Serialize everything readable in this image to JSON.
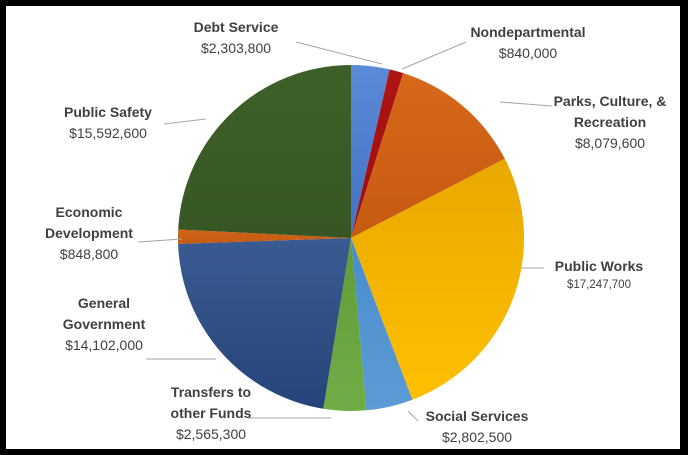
{
  "chart_data": {
    "type": "pie",
    "title": "",
    "slices": [
      {
        "name": "Debt Service",
        "name_lines": [
          "Debt Service"
        ],
        "value": 2303800,
        "label": "$2,303,800",
        "color": "#4472c4",
        "color2": "#5b8ad8"
      },
      {
        "name": "Nondepartmental",
        "name_lines": [
          "Nondepartmental"
        ],
        "value": 840000,
        "label": "$840,000",
        "color": "#9b0d0d",
        "color2": "#b01515"
      },
      {
        "name": "Parks, Culture, & Recreation",
        "name_lines": [
          "Parks, Culture, &",
          "Recreation"
        ],
        "value": 8079600,
        "label": "$8,079,600",
        "color": "#c55a11",
        "color2": "#d8681a"
      },
      {
        "name": "Public Works",
        "name_lines": [
          "Public Works"
        ],
        "value": 17247700,
        "label": "$17,247,700",
        "color": "#ffc000",
        "color2": "#e8a800",
        "small_value": true
      },
      {
        "name": "Social Services",
        "name_lines": [
          "Social Services"
        ],
        "value": 2802500,
        "label": "$2,802,500",
        "color": "#5b9bd5",
        "color2": "#4a8ccc"
      },
      {
        "name": "Transfers to other Funds",
        "name_lines": [
          "Transfers to",
          "other Funds"
        ],
        "value": 2565300,
        "label": "$2,565,300",
        "color": "#70ad47",
        "color2": "#5e9c38"
      },
      {
        "name": "General Government",
        "name_lines": [
          "General",
          "Government"
        ],
        "value": 14102000,
        "label": "$14,102,000",
        "color": "#264478",
        "color2": "#3a5b92"
      },
      {
        "name": "Economic Development",
        "name_lines": [
          "Economic",
          "Development"
        ],
        "value": 848800,
        "label": "$848,800",
        "color": "#c55a11",
        "color2": "#d06418"
      },
      {
        "name": "Public Safety",
        "name_lines": [
          "Public Safety"
        ],
        "value": 15592600,
        "label": "$15,592,600",
        "color": "#375623",
        "color2": "#3e6028"
      }
    ],
    "start_angle": "12 o'clock",
    "direction": "clockwise",
    "legend": "none",
    "labels": "outside with leader lines"
  }
}
